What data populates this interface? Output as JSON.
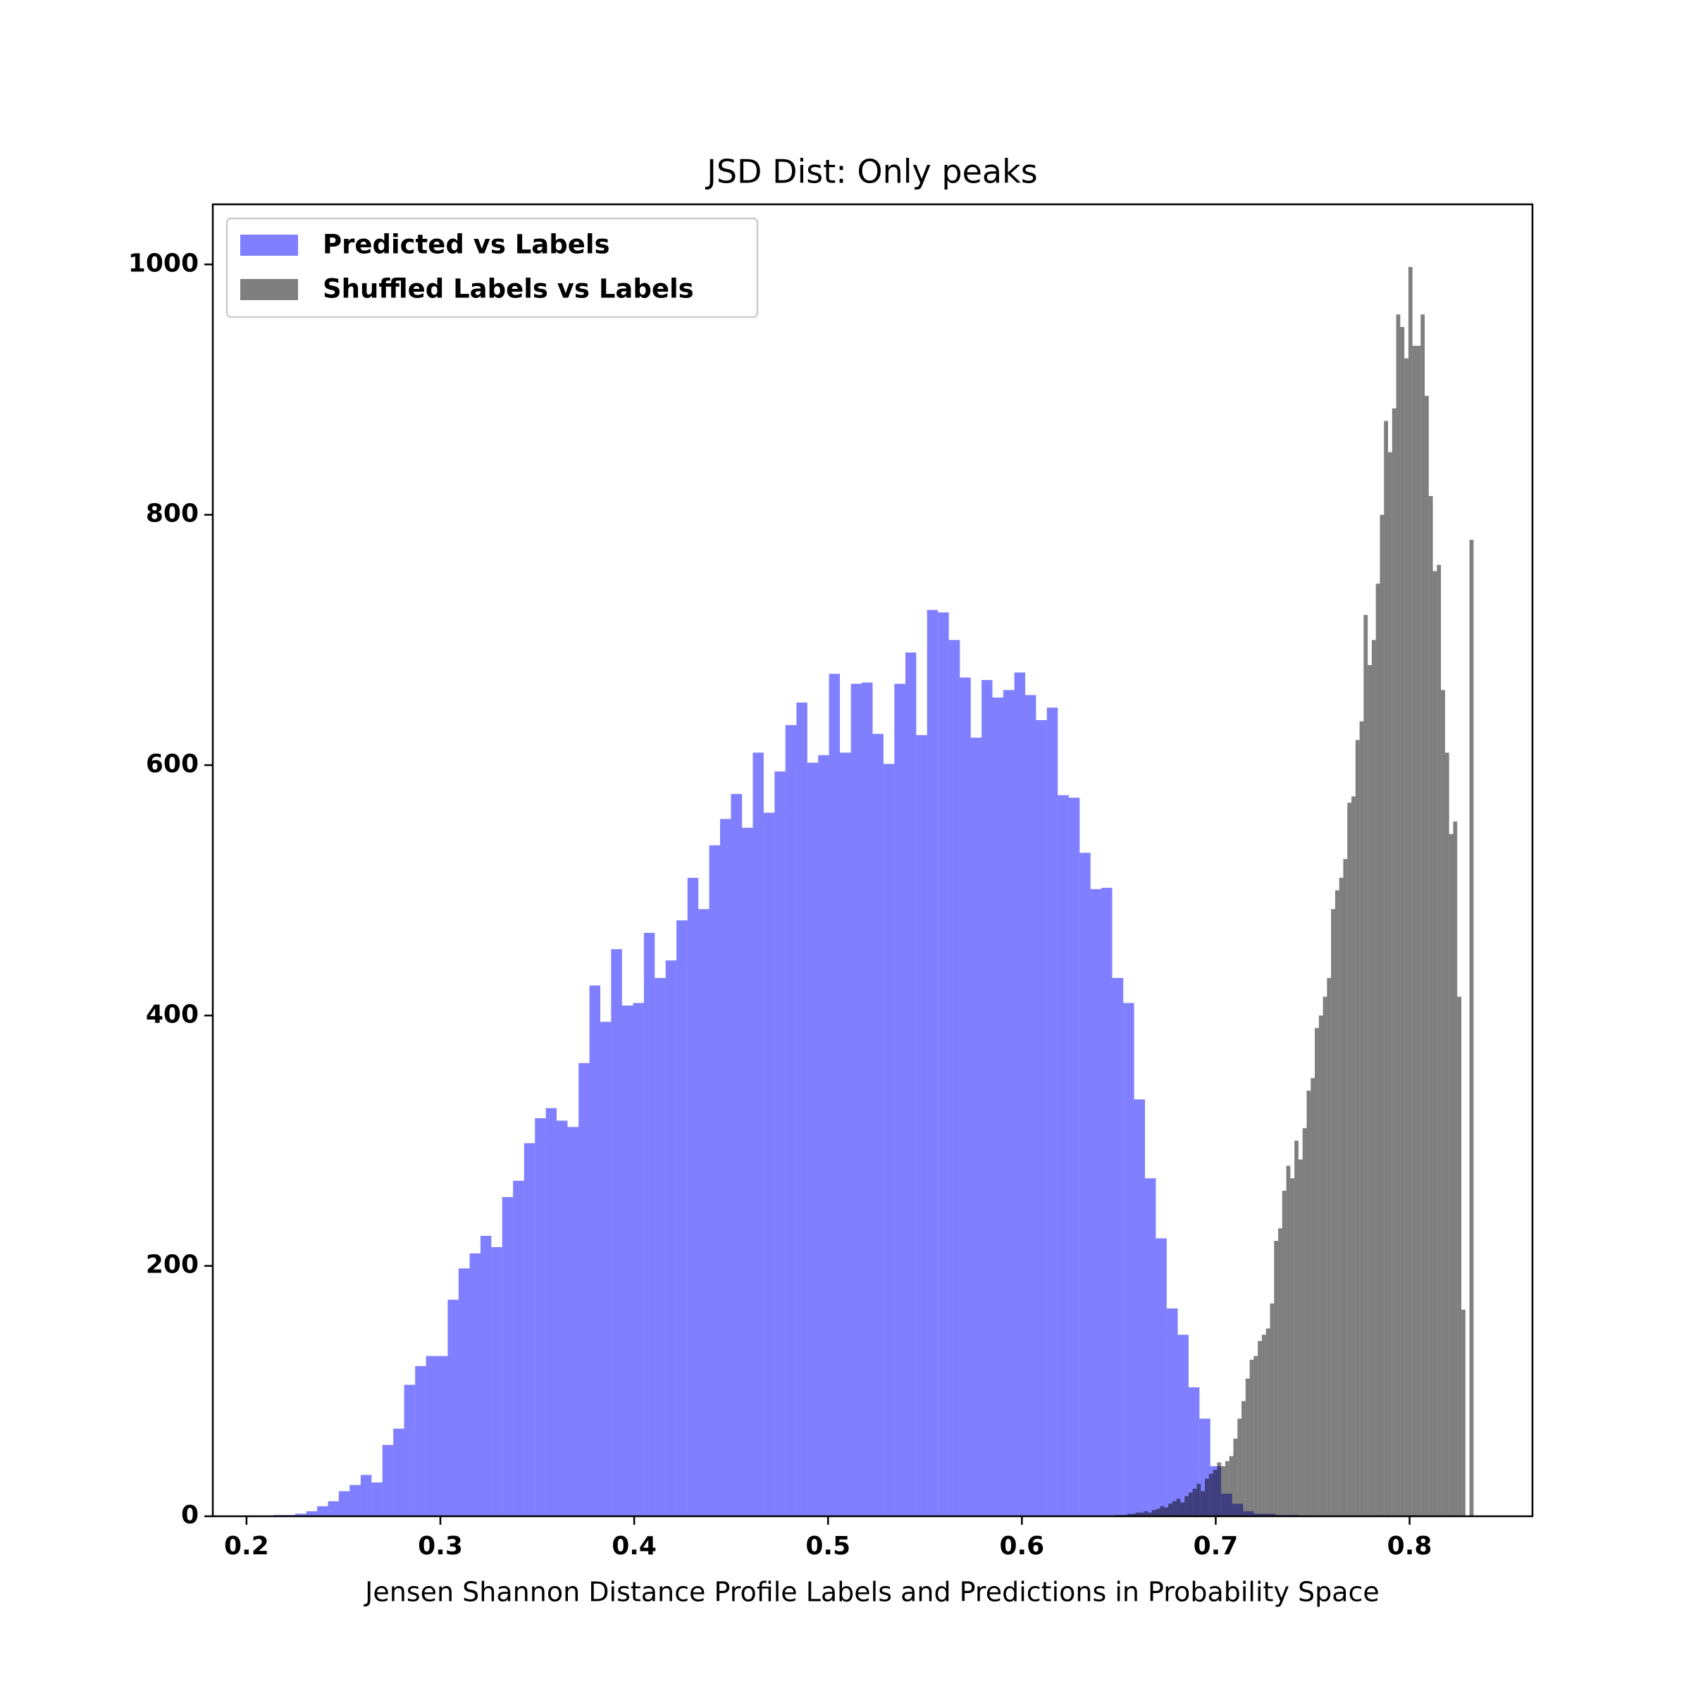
{
  "chart_data": {
    "type": "histogram",
    "title": "JSD Dist: Only peaks",
    "xlabel": "Jensen Shannon Distance Profile Labels and Predictions in Probability Space",
    "xlim": [
      0.1826,
      0.8634
    ],
    "ylim": [
      0,
      1048
    ],
    "xticks": [
      0.2,
      0.3,
      0.4,
      0.5,
      0.6,
      0.7,
      0.8
    ],
    "yticks": [
      0,
      200,
      400,
      600,
      800,
      1000
    ],
    "alpha": 0.5,
    "legend": "upper left",
    "series": [
      {
        "name": "Predicted vs Labels",
        "color": "#0000ff",
        "bins": [
          0.2139,
          0.2195,
          0.2251,
          0.2308,
          0.2364,
          0.242,
          0.2476,
          0.2532,
          0.2589,
          0.2645,
          0.2701,
          0.2757,
          0.2813,
          0.287,
          0.2926,
          0.2982,
          0.3038,
          0.3094,
          0.3151,
          0.3207,
          0.3263,
          0.3319,
          0.3375,
          0.3432,
          0.3488,
          0.3544,
          0.36,
          0.3656,
          0.3713,
          0.3769,
          0.3825,
          0.3881,
          0.3937,
          0.3994,
          0.405,
          0.4106,
          0.4162,
          0.4218,
          0.4275,
          0.4331,
          0.4387,
          0.4443,
          0.4499,
          0.4556,
          0.4612,
          0.4668,
          0.4724,
          0.478,
          0.4837,
          0.4893,
          0.4949,
          0.5005,
          0.5061,
          0.5118,
          0.5174,
          0.523,
          0.5286,
          0.5342,
          0.5399,
          0.5455,
          0.5511,
          0.5567,
          0.5623,
          0.568,
          0.5736,
          0.5792,
          0.5848,
          0.5904,
          0.5961,
          0.6017,
          0.6073,
          0.6129,
          0.6185,
          0.6242,
          0.6298,
          0.6354,
          0.641,
          0.6466,
          0.6523,
          0.6579,
          0.6635,
          0.6691,
          0.6747,
          0.6804,
          0.686,
          0.6916,
          0.6972,
          0.7028,
          0.7085,
          0.7141,
          0.7197,
          0.7253,
          0.7309,
          0.7366,
          0.7422,
          0.7478
        ],
        "values": [
          1,
          1,
          2,
          4,
          8,
          12,
          20,
          25,
          33,
          27,
          57,
          70,
          105,
          120,
          128,
          128,
          173,
          198,
          210,
          224,
          215,
          255,
          268,
          298,
          318,
          326,
          316,
          311,
          362,
          424,
          395,
          453,
          408,
          410,
          466,
          430,
          444,
          476,
          510,
          485,
          536,
          557,
          577,
          550,
          610,
          562,
          595,
          632,
          650,
          602,
          608,
          673,
          610,
          665,
          666,
          625,
          601,
          665,
          690,
          624,
          724,
          722,
          700,
          670,
          622,
          668,
          654,
          660,
          674,
          656,
          636,
          646,
          576,
          574,
          530,
          501,
          502,
          430,
          410,
          333,
          270,
          222,
          166,
          145,
          103,
          78,
          40,
          18,
          10,
          4,
          2,
          2,
          1,
          1,
          0
        ]
      },
      {
        "name": "Shuffled Labels vs Labels",
        "color": "#000000",
        "bins": [
          0.6482,
          0.6503,
          0.6524,
          0.6545,
          0.6566,
          0.6587,
          0.6608,
          0.6629,
          0.665,
          0.6671,
          0.6692,
          0.6713,
          0.6734,
          0.6755,
          0.6776,
          0.6797,
          0.6818,
          0.6839,
          0.686,
          0.6881,
          0.6902,
          0.6923,
          0.6944,
          0.6965,
          0.6986,
          0.7007,
          0.7028,
          0.7049,
          0.707,
          0.7091,
          0.7112,
          0.7133,
          0.7154,
          0.7175,
          0.7196,
          0.7217,
          0.7238,
          0.7259,
          0.728,
          0.7301,
          0.7322,
          0.7343,
          0.7364,
          0.7385,
          0.7406,
          0.7427,
          0.7448,
          0.7469,
          0.749,
          0.7511,
          0.7532,
          0.7553,
          0.7574,
          0.7595,
          0.7616,
          0.7637,
          0.7658,
          0.7679,
          0.77,
          0.7721,
          0.7742,
          0.7763,
          0.7784,
          0.7805,
          0.7826,
          0.7847,
          0.7868,
          0.7889,
          0.791,
          0.7931,
          0.7952,
          0.7973,
          0.7994,
          0.8015,
          0.8036,
          0.8057,
          0.8078,
          0.8099,
          0.812,
          0.8141,
          0.8162,
          0.8183,
          0.8204,
          0.8225,
          0.8246,
          0.8267,
          0.8288,
          0.8309,
          0.833
        ],
        "values": [
          1,
          1,
          1,
          2,
          2,
          3,
          3,
          4,
          3,
          5,
          6,
          8,
          7,
          10,
          12,
          14,
          11,
          16,
          19,
          22,
          26,
          20,
          30,
          34,
          37,
          43,
          40,
          44,
          48,
          62,
          78,
          92,
          110,
          125,
          128,
          140,
          145,
          150,
          170,
          220,
          230,
          260,
          280,
          270,
          300,
          285,
          310,
          340,
          350,
          390,
          400,
          415,
          430,
          485,
          500,
          510,
          525,
          570,
          575,
          620,
          635,
          720,
          680,
          700,
          745,
          800,
          875,
          850,
          885,
          960,
          950,
          925,
          998,
          935,
          935,
          960,
          895,
          815,
          755,
          760,
          660,
          610,
          545,
          555,
          415,
          165,
          0,
          780
        ]
      }
    ]
  }
}
